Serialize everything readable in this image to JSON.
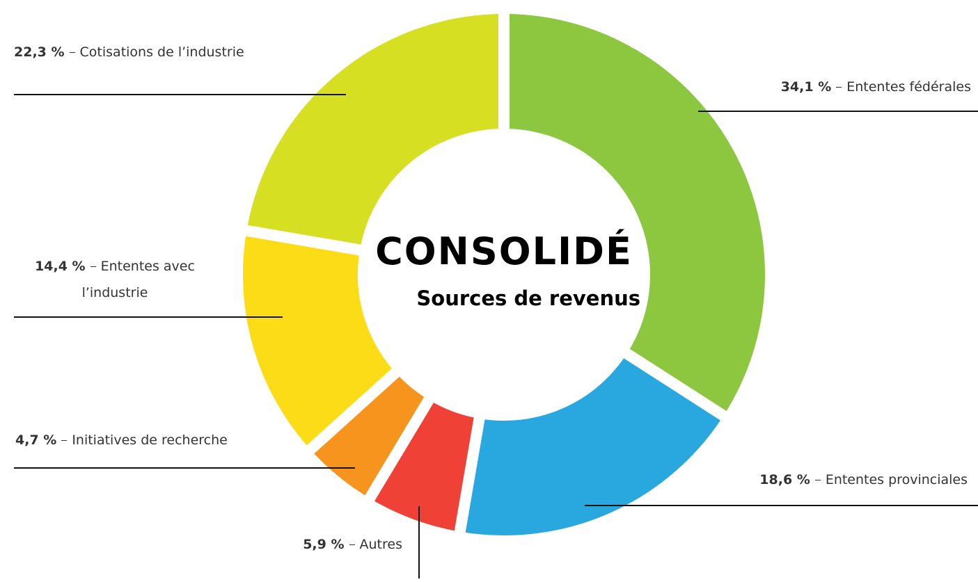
{
  "chart_data": {
    "type": "donut",
    "title": "CONSOLIDÉ",
    "subtitle": "Sources de revenus",
    "categories": [
      "Ententes fédérales",
      "Ententes provinciales",
      "Autres",
      "Initiatives de recherche",
      "Ententes avec l’industrie",
      "Cotisations de  l’industrie"
    ],
    "values": [
      34.1,
      18.6,
      5.9,
      4.7,
      14.4,
      22.3
    ],
    "value_labels": [
      "34,1 %",
      "18,6 %",
      "5,9 %",
      "4,7 %",
      "14,4 %",
      "22,3 %"
    ],
    "colors": [
      "#8dc63f",
      "#29a8e0",
      "#ef4136",
      "#f7941d",
      "#fcdc17",
      "#d7df23"
    ]
  }
}
